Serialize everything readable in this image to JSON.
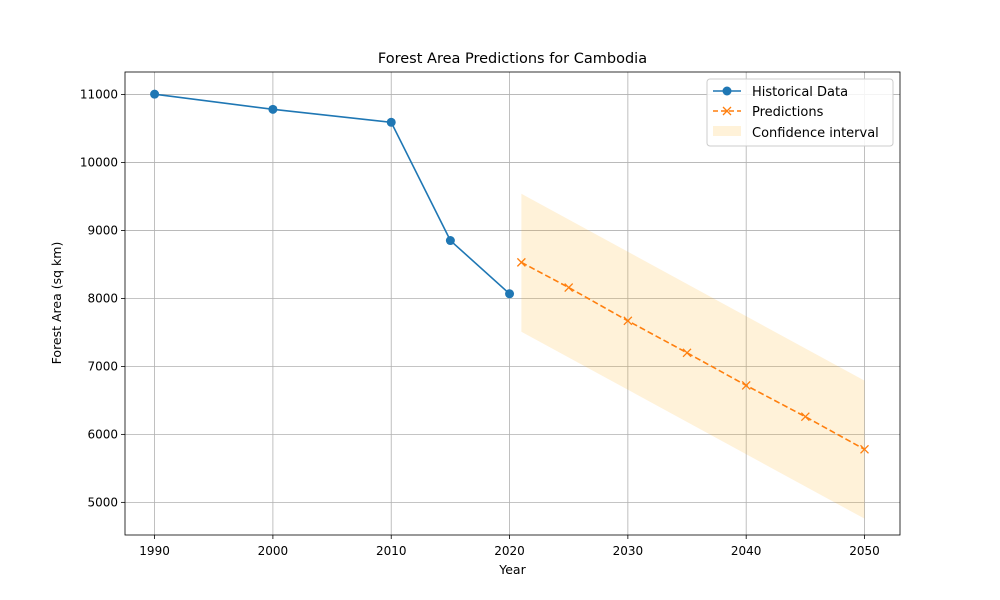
{
  "chart_data": {
    "type": "line",
    "title": "Forest Area Predictions for Cambodia",
    "xlabel": "Year",
    "ylabel": "Forest Area (sq km)",
    "xlim": [
      1987.5,
      2053
    ],
    "ylim": [
      4520,
      11330
    ],
    "xticks": [
      1990,
      2000,
      2010,
      2020,
      2030,
      2040,
      2050
    ],
    "yticks": [
      5000,
      6000,
      7000,
      8000,
      9000,
      10000,
      11000
    ],
    "grid": true,
    "legend_position": "top-right",
    "series": [
      {
        "name": "Historical Data",
        "style": "solid line with circle markers",
        "color": "#1f77b4",
        "x": [
          1990,
          2000,
          2010,
          2015,
          2020
        ],
        "y": [
          11004,
          10781,
          10590,
          8851,
          8068
        ]
      },
      {
        "name": "Predictions",
        "style": "dashed line with x markers",
        "color": "#ff7f0e",
        "x": [
          2021,
          2025,
          2030,
          2035,
          2040,
          2045,
          2050
        ],
        "y": [
          8530,
          8160,
          7670,
          7200,
          6720,
          6260,
          5780
        ]
      }
    ],
    "band": {
      "name": "Confidence interval",
      "color": "#ffa500",
      "opacity": 0.15,
      "x": [
        2021,
        2050
      ],
      "lower": [
        7510,
        4760
      ],
      "upper": [
        9540,
        6790
      ]
    }
  }
}
